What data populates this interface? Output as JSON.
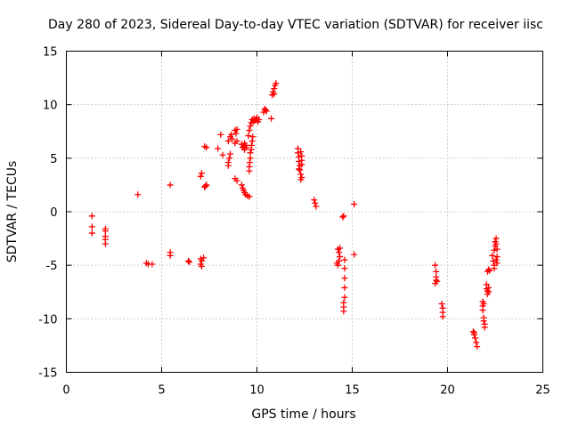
{
  "chart_data": {
    "type": "scatter",
    "title": "Day 280 of 2023, Sidereal Day-to-day VTEC variation (SDTVAR) for receiver iisc",
    "xlabel": "GPS time / hours",
    "ylabel": "SDTVAR / TECUs",
    "xlim": [
      0,
      25
    ],
    "ylim": [
      -15,
      15
    ],
    "xticks": [
      "0",
      "5",
      "10",
      "15",
      "20",
      "25"
    ],
    "yticks": [
      "-15",
      "-10",
      "-5",
      "0",
      "5",
      "10",
      "15"
    ],
    "grid": true,
    "marker": "plus",
    "color": "#ff0000",
    "series": [
      {
        "name": "SDTVAR",
        "points": [
          [
            1.35,
            -0.4
          ],
          [
            1.35,
            -1.4
          ],
          [
            1.35,
            -2.0
          ],
          [
            2.05,
            -1.6
          ],
          [
            2.05,
            -1.8
          ],
          [
            2.05,
            -2.3
          ],
          [
            2.05,
            -2.6
          ],
          [
            2.05,
            -3.0
          ],
          [
            3.75,
            1.6
          ],
          [
            4.2,
            -4.8
          ],
          [
            4.3,
            -4.9
          ],
          [
            4.5,
            -4.9
          ],
          [
            5.45,
            2.5
          ],
          [
            5.45,
            -3.8
          ],
          [
            5.45,
            -4.1
          ],
          [
            6.4,
            -4.6
          ],
          [
            6.45,
            -4.7
          ],
          [
            7.05,
            3.3
          ],
          [
            7.1,
            3.6
          ],
          [
            7.05,
            -4.4
          ],
          [
            7.1,
            -4.6
          ],
          [
            7.05,
            -4.9
          ],
          [
            7.1,
            -5.1
          ],
          [
            7.2,
            -4.3
          ],
          [
            7.25,
            2.3
          ],
          [
            7.3,
            2.4
          ],
          [
            7.35,
            2.5
          ],
          [
            7.25,
            6.1
          ],
          [
            7.35,
            6.0
          ],
          [
            7.95,
            5.9
          ],
          [
            8.1,
            7.2
          ],
          [
            8.2,
            5.3
          ],
          [
            8.5,
            4.3
          ],
          [
            8.5,
            4.6
          ],
          [
            8.55,
            5.0
          ],
          [
            8.6,
            5.4
          ],
          [
            8.5,
            6.6
          ],
          [
            8.6,
            7.0
          ],
          [
            8.65,
            7.2
          ],
          [
            8.7,
            6.8
          ],
          [
            8.85,
            7.6
          ],
          [
            8.9,
            7.3
          ],
          [
            8.95,
            7.7
          ],
          [
            8.85,
            6.4
          ],
          [
            8.95,
            6.6
          ],
          [
            8.85,
            3.1
          ],
          [
            8.95,
            2.9
          ],
          [
            9.2,
            6.3
          ],
          [
            9.25,
            6.0
          ],
          [
            9.3,
            6.1
          ],
          [
            9.35,
            6.4
          ],
          [
            9.4,
            6.2
          ],
          [
            9.45,
            6.0
          ],
          [
            9.35,
            5.8
          ],
          [
            9.2,
            2.5
          ],
          [
            9.25,
            2.2
          ],
          [
            9.3,
            2.0
          ],
          [
            9.35,
            1.8
          ],
          [
            9.4,
            1.6
          ],
          [
            9.5,
            1.5
          ],
          [
            9.6,
            1.4
          ],
          [
            9.6,
            3.8
          ],
          [
            9.6,
            4.2
          ],
          [
            9.62,
            4.6
          ],
          [
            9.65,
            5.0
          ],
          [
            9.65,
            5.5
          ],
          [
            9.7,
            5.8
          ],
          [
            9.72,
            6.2
          ],
          [
            9.75,
            6.6
          ],
          [
            9.78,
            7.0
          ],
          [
            9.55,
            7.1
          ],
          [
            9.6,
            7.6
          ],
          [
            9.65,
            8.0
          ],
          [
            9.7,
            8.3
          ],
          [
            9.75,
            8.6
          ],
          [
            9.8,
            8.4
          ],
          [
            9.85,
            8.7
          ],
          [
            9.9,
            8.5
          ],
          [
            9.95,
            8.6
          ],
          [
            10.0,
            8.8
          ],
          [
            10.05,
            8.4
          ],
          [
            10.1,
            8.6
          ],
          [
            10.35,
            9.3
          ],
          [
            10.4,
            9.6
          ],
          [
            10.45,
            9.5
          ],
          [
            10.5,
            9.4
          ],
          [
            10.75,
            8.7
          ],
          [
            10.8,
            10.9
          ],
          [
            10.85,
            11.2
          ],
          [
            10.9,
            11.5
          ],
          [
            10.95,
            11.8
          ],
          [
            11.0,
            12.0
          ],
          [
            10.9,
            11.0
          ],
          [
            12.15,
            5.9
          ],
          [
            12.15,
            5.5
          ],
          [
            12.2,
            5.1
          ],
          [
            12.2,
            4.7
          ],
          [
            12.25,
            4.3
          ],
          [
            12.25,
            3.9
          ],
          [
            12.3,
            3.5
          ],
          [
            12.3,
            3.0
          ],
          [
            12.2,
            4.0
          ],
          [
            12.3,
            5.6
          ],
          [
            12.35,
            5.2
          ],
          [
            12.35,
            4.8
          ],
          [
            12.35,
            4.4
          ],
          [
            12.35,
            3.2
          ],
          [
            13.0,
            1.1
          ],
          [
            13.05,
            0.8
          ],
          [
            13.1,
            0.5
          ],
          [
            14.25,
            -3.5
          ],
          [
            14.3,
            -3.8
          ],
          [
            14.35,
            -4.2
          ],
          [
            14.3,
            -4.6
          ],
          [
            14.25,
            -5.0
          ],
          [
            14.2,
            -4.8
          ],
          [
            14.35,
            -3.4
          ],
          [
            14.5,
            -0.5
          ],
          [
            14.55,
            -0.4
          ],
          [
            14.6,
            -4.5
          ],
          [
            14.6,
            -5.3
          ],
          [
            14.6,
            -6.2
          ],
          [
            14.6,
            -7.1
          ],
          [
            14.6,
            -8.0
          ],
          [
            14.55,
            -8.5
          ],
          [
            14.55,
            -8.9
          ],
          [
            14.55,
            -9.3
          ],
          [
            15.1,
            0.7
          ],
          [
            15.1,
            -4.0
          ],
          [
            19.35,
            -5.0
          ],
          [
            19.4,
            -5.6
          ],
          [
            19.4,
            -6.1
          ],
          [
            19.4,
            -6.4
          ],
          [
            19.35,
            -6.7
          ],
          [
            19.45,
            -6.5
          ],
          [
            19.7,
            -8.6
          ],
          [
            19.75,
            -9.0
          ],
          [
            19.75,
            -9.4
          ],
          [
            19.75,
            -9.8
          ],
          [
            21.35,
            -11.2
          ],
          [
            21.4,
            -11.5
          ],
          [
            21.45,
            -11.8
          ],
          [
            21.5,
            -12.2
          ],
          [
            21.55,
            -12.6
          ],
          [
            21.4,
            -11.3
          ],
          [
            21.85,
            -8.4
          ],
          [
            21.85,
            -8.8
          ],
          [
            21.85,
            -9.2
          ],
          [
            21.9,
            -9.9
          ],
          [
            21.9,
            -10.2
          ],
          [
            21.95,
            -10.5
          ],
          [
            21.95,
            -10.8
          ],
          [
            21.9,
            -8.6
          ],
          [
            22.05,
            -6.8
          ],
          [
            22.05,
            -7.2
          ],
          [
            22.1,
            -7.4
          ],
          [
            22.1,
            -7.7
          ],
          [
            22.15,
            -7.1
          ],
          [
            22.15,
            -7.5
          ],
          [
            22.1,
            -5.6
          ],
          [
            22.15,
            -5.4
          ],
          [
            22.2,
            -5.5
          ],
          [
            22.35,
            -4.1
          ],
          [
            22.4,
            -4.6
          ],
          [
            22.45,
            -5.0
          ],
          [
            22.45,
            -5.3
          ],
          [
            22.45,
            -3.6
          ],
          [
            22.5,
            -3.2
          ],
          [
            22.5,
            -2.8
          ],
          [
            22.55,
            -2.5
          ],
          [
            22.55,
            -3.0
          ],
          [
            22.6,
            -3.5
          ],
          [
            22.6,
            -4.2
          ],
          [
            22.6,
            -4.8
          ],
          [
            22.55,
            -4.5
          ]
        ]
      }
    ]
  }
}
